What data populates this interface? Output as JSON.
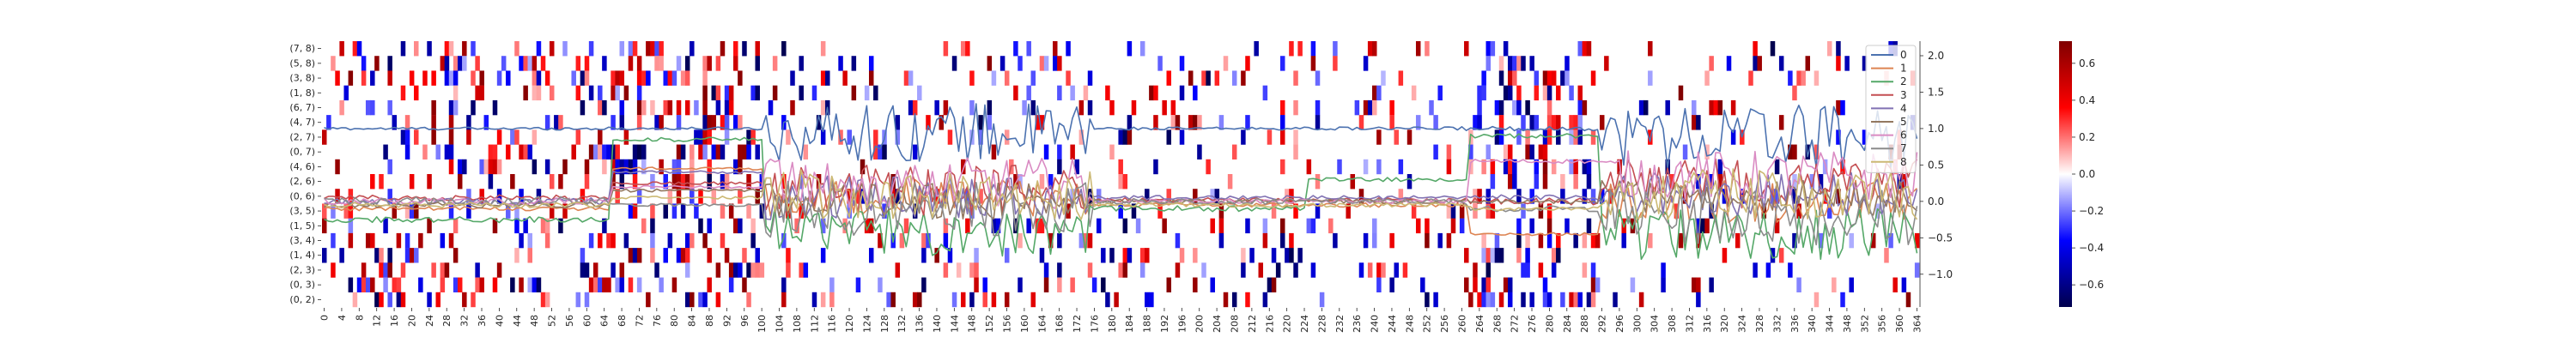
{
  "chart_data": {
    "type": "heatmap",
    "description_note": "",
    "y_categories": [
      "(7, 8)",
      "(5, 8)",
      "(3, 8)",
      "(1, 8)",
      "(6, 7)",
      "(4, 7)",
      "(2, 7)",
      "(0, 7)",
      "(4, 6)",
      "(2, 6)",
      "(0, 6)",
      "(3, 5)",
      "(1, 5)",
      "(3, 4)",
      "(1, 4)",
      "(2, 3)",
      "(0, 3)",
      "(0, 2)"
    ],
    "x_tick_step": 4,
    "x_range": [
      0,
      365
    ],
    "heatmap": {
      "colormap": "seismic",
      "vmin": -0.72,
      "vmax": 0.72,
      "colorbar_ticks": [
        -0.6,
        -0.4,
        -0.2,
        0.0,
        0.2,
        0.4,
        0.6
      ],
      "colorbar_labels": [
        "−0.6",
        "−0.4",
        "−0.2",
        "0.0",
        "0.2",
        "0.4",
        "0.6"
      ]
    },
    "lines": {
      "type": "line",
      "y_range": [
        -1.45,
        2.2
      ],
      "y_ticks": [
        -1.0,
        -0.5,
        0.0,
        0.5,
        1.0,
        1.5,
        2.0
      ],
      "y_tick_labels": [
        "−1.0",
        "−0.5",
        "0.0",
        "0.5",
        "1.0",
        "1.5",
        "2.0"
      ],
      "legend_position": "upper-right",
      "series": [
        {
          "name": "0",
          "color": "#4c72b0",
          "segments": [
            [
              0,
              101,
              1.0,
              0.02,
              "flat"
            ],
            [
              101,
              176,
              0.95,
              0.4,
              "noisy"
            ],
            [
              176,
              255,
              1.0,
              0.02,
              "flat"
            ],
            [
              255,
              292,
              1.0,
              0.03,
              "flat"
            ],
            [
              292,
              365,
              0.9,
              0.45,
              "noisy"
            ]
          ]
        },
        {
          "name": "1",
          "color": "#dd8452",
          "segments": [
            [
              0,
              66,
              -0.1,
              0.03,
              "flat"
            ],
            [
              66,
              101,
              0.45,
              0.02,
              "flat"
            ],
            [
              101,
              176,
              0.05,
              0.25,
              "noisy"
            ],
            [
              176,
              262,
              -0.05,
              0.03,
              "flat"
            ],
            [
              262,
              292,
              -0.45,
              0.02,
              "flat"
            ],
            [
              292,
              365,
              0.0,
              0.3,
              "noisy"
            ]
          ]
        },
        {
          "name": "2",
          "color": "#55a868",
          "segments": [
            [
              0,
              66,
              -0.25,
              0.04,
              "flat"
            ],
            [
              66,
              101,
              0.85,
              0.03,
              "flat"
            ],
            [
              101,
              176,
              -0.4,
              0.35,
              "noisy"
            ],
            [
              176,
              225,
              -0.1,
              0.04,
              "flat"
            ],
            [
              225,
              262,
              0.3,
              0.03,
              "flat"
            ],
            [
              262,
              292,
              0.9,
              0.03,
              "flat"
            ],
            [
              292,
              365,
              -0.45,
              0.35,
              "noisy"
            ]
          ]
        },
        {
          "name": "3",
          "color": "#c44e52",
          "segments": [
            [
              0,
              66,
              0.05,
              0.04,
              "flat"
            ],
            [
              66,
              101,
              0.25,
              0.02,
              "flat"
            ],
            [
              101,
              176,
              0.15,
              0.35,
              "noisy"
            ],
            [
              176,
              255,
              0.02,
              0.03,
              "flat"
            ],
            [
              255,
              292,
              0.0,
              0.05,
              "flat"
            ],
            [
              292,
              365,
              0.25,
              0.35,
              "noisy"
            ]
          ]
        },
        {
          "name": "4",
          "color": "#8172b3",
          "segments": [
            [
              0,
              66,
              0.0,
              0.05,
              "flat"
            ],
            [
              66,
              101,
              0.4,
              0.02,
              "flat"
            ],
            [
              101,
              176,
              0.05,
              0.3,
              "noisy"
            ],
            [
              176,
              262,
              0.05,
              0.03,
              "flat"
            ],
            [
              262,
              292,
              0.05,
              0.04,
              "flat"
            ],
            [
              292,
              365,
              0.1,
              0.3,
              "noisy"
            ]
          ]
        },
        {
          "name": "5",
          "color": "#937860",
          "segments": [
            [
              0,
              66,
              -0.05,
              0.04,
              "flat"
            ],
            [
              66,
              101,
              0.15,
              0.02,
              "flat"
            ],
            [
              101,
              176,
              0.0,
              0.25,
              "noisy"
            ],
            [
              176,
              262,
              0.0,
              0.03,
              "flat"
            ],
            [
              262,
              292,
              0.0,
              0.03,
              "flat"
            ],
            [
              292,
              365,
              0.05,
              0.25,
              "noisy"
            ]
          ]
        },
        {
          "name": "6",
          "color": "#da8bc3",
          "segments": [
            [
              0,
              66,
              0.0,
              0.05,
              "flat"
            ],
            [
              66,
              101,
              0.2,
              0.02,
              "flat"
            ],
            [
              101,
              176,
              0.25,
              0.35,
              "noisy"
            ],
            [
              176,
              262,
              0.0,
              0.03,
              "flat"
            ],
            [
              262,
              292,
              0.55,
              0.03,
              "flat"
            ],
            [
              292,
              365,
              0.35,
              0.35,
              "noisy"
            ]
          ]
        },
        {
          "name": "7",
          "color": "#8c8c8c",
          "segments": [
            [
              0,
              66,
              0.0,
              0.07,
              "flat"
            ],
            [
              66,
              101,
              -0.05,
              0.02,
              "flat"
            ],
            [
              101,
              176,
              -0.1,
              0.4,
              "noisy"
            ],
            [
              176,
              262,
              0.0,
              0.04,
              "flat"
            ],
            [
              262,
              292,
              -0.1,
              0.04,
              "flat"
            ],
            [
              292,
              365,
              -0.2,
              0.4,
              "noisy"
            ]
          ]
        },
        {
          "name": "8",
          "color": "#ccb974",
          "segments": [
            [
              0,
              66,
              -0.05,
              0.04,
              "flat"
            ],
            [
              66,
              101,
              0.05,
              0.02,
              "flat"
            ],
            [
              101,
              176,
              0.1,
              0.35,
              "noisy"
            ],
            [
              176,
              262,
              -0.05,
              0.03,
              "flat"
            ],
            [
              262,
              292,
              -0.1,
              0.03,
              "flat"
            ],
            [
              292,
              365,
              0.1,
              0.35,
              "noisy"
            ]
          ]
        }
      ]
    }
  }
}
